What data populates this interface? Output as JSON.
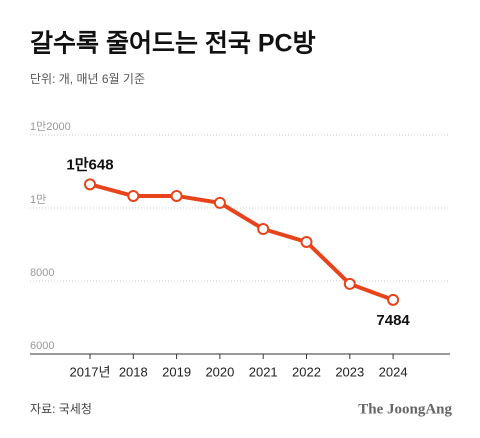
{
  "chart_data": {
    "type": "line",
    "title": "갈수록 줄어드는 전국 PC방",
    "subtitle": "단위: 개, 매년 6월 기준",
    "categories": [
      "2017년",
      "2018",
      "2019",
      "2020",
      "2021",
      "2022",
      "2023",
      "2024"
    ],
    "values": [
      10648,
      10330,
      10330,
      10140,
      9425,
      9070,
      7920,
      7484
    ],
    "value_labels": [
      "1만648",
      null,
      null,
      null,
      null,
      null,
      null,
      "7484"
    ],
    "color": "#e8441c",
    "ylim": [
      6000,
      12000
    ],
    "yticks": [
      6000,
      8000,
      {
        "value": 10000,
        "label": "1만"
      },
      {
        "value": 12000,
        "label": "1만2000"
      }
    ],
    "grid": true,
    "source": "자료: 국세청",
    "brand": "The JoongAng"
  }
}
